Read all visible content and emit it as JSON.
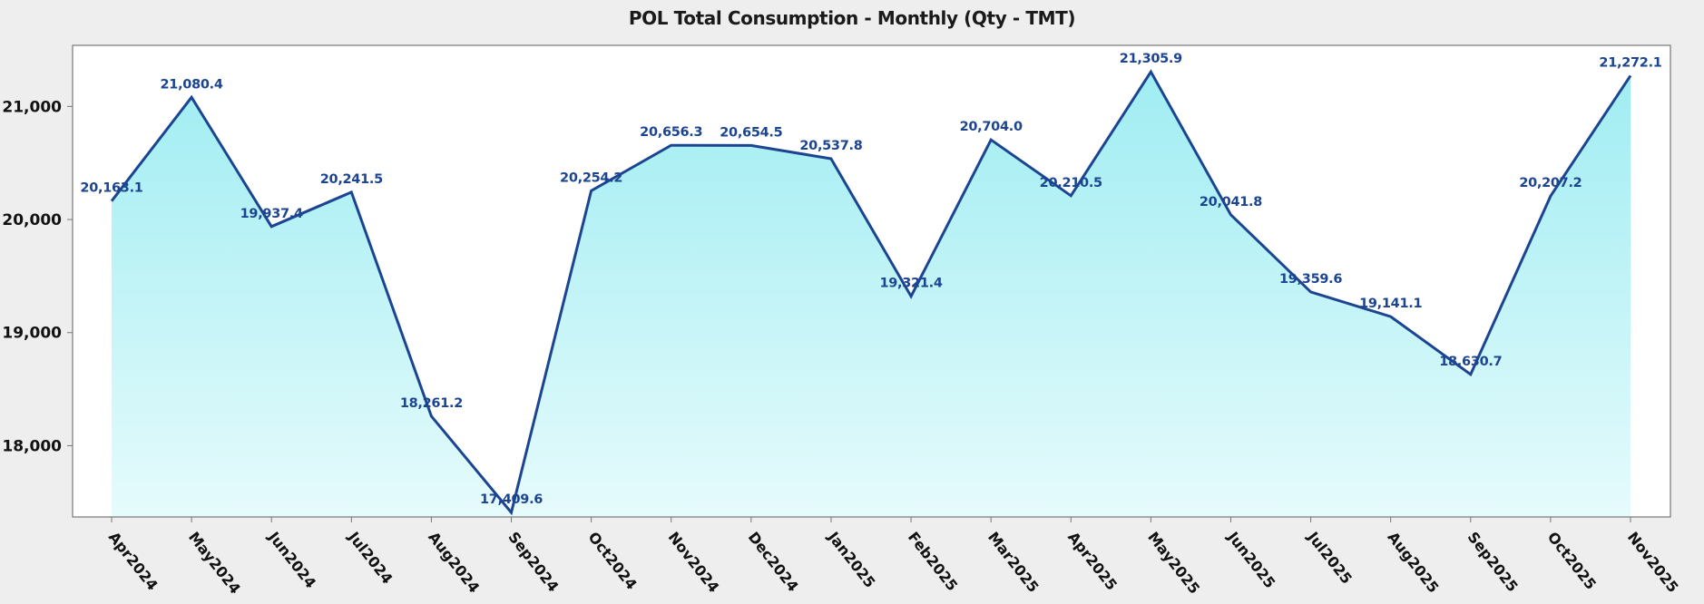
{
  "chart_data": {
    "type": "area",
    "title": "POL Total Consumption - Monthly (Qty - TMT)",
    "xlabel": "",
    "ylabel": "",
    "ylim": [
      17370,
      21540
    ],
    "yticks": [
      18000,
      19000,
      20000,
      21000
    ],
    "ytick_labels": [
      "18,000",
      "19,000",
      "20,000",
      "21,000"
    ],
    "grid": false,
    "legend": "none",
    "categories": [
      "Apr2024",
      "May2024",
      "Jun2024",
      "Jul2024",
      "Aug2024",
      "Sep2024",
      "Oct2024",
      "Nov2024",
      "Dec2024",
      "Jan2025",
      "Feb2025",
      "Mar2025",
      "Apr2025",
      "May2025",
      "Jun2025",
      "Jul2025",
      "Aug2025",
      "Sep2025",
      "Oct2025",
      "Nov2025"
    ],
    "series": [
      {
        "name": "POL Total Consumption",
        "values": [
          20163.1,
          21080.4,
          19937.4,
          20241.5,
          18261.2,
          17409.6,
          20254.2,
          20656.3,
          20654.5,
          20537.8,
          19321.4,
          20704.0,
          20210.5,
          21305.9,
          20041.8,
          19359.6,
          19141.1,
          18630.7,
          20207.2,
          21272.1
        ],
        "labels": [
          "20,163.1",
          "21,080.4",
          "19,937.4",
          "20,241.5",
          "18,261.2",
          "17,409.6",
          "20,254.2",
          "20,656.3",
          "20,654.5",
          "20,537.8",
          "19,321.4",
          "20,704.0",
          "20,210.5",
          "21,305.9",
          "20,041.8",
          "19,359.6",
          "19,141.1",
          "18,630.7",
          "20,207.2",
          "21,272.1"
        ]
      }
    ],
    "colors": {
      "line": "#1c4591",
      "fill_top": "#9fedf2",
      "fill_bottom": "#e6fbfc",
      "label": "#1c4591",
      "plot_bg": "#ffffff",
      "page_bg": "#eeeeee",
      "axis": "#777777"
    }
  }
}
